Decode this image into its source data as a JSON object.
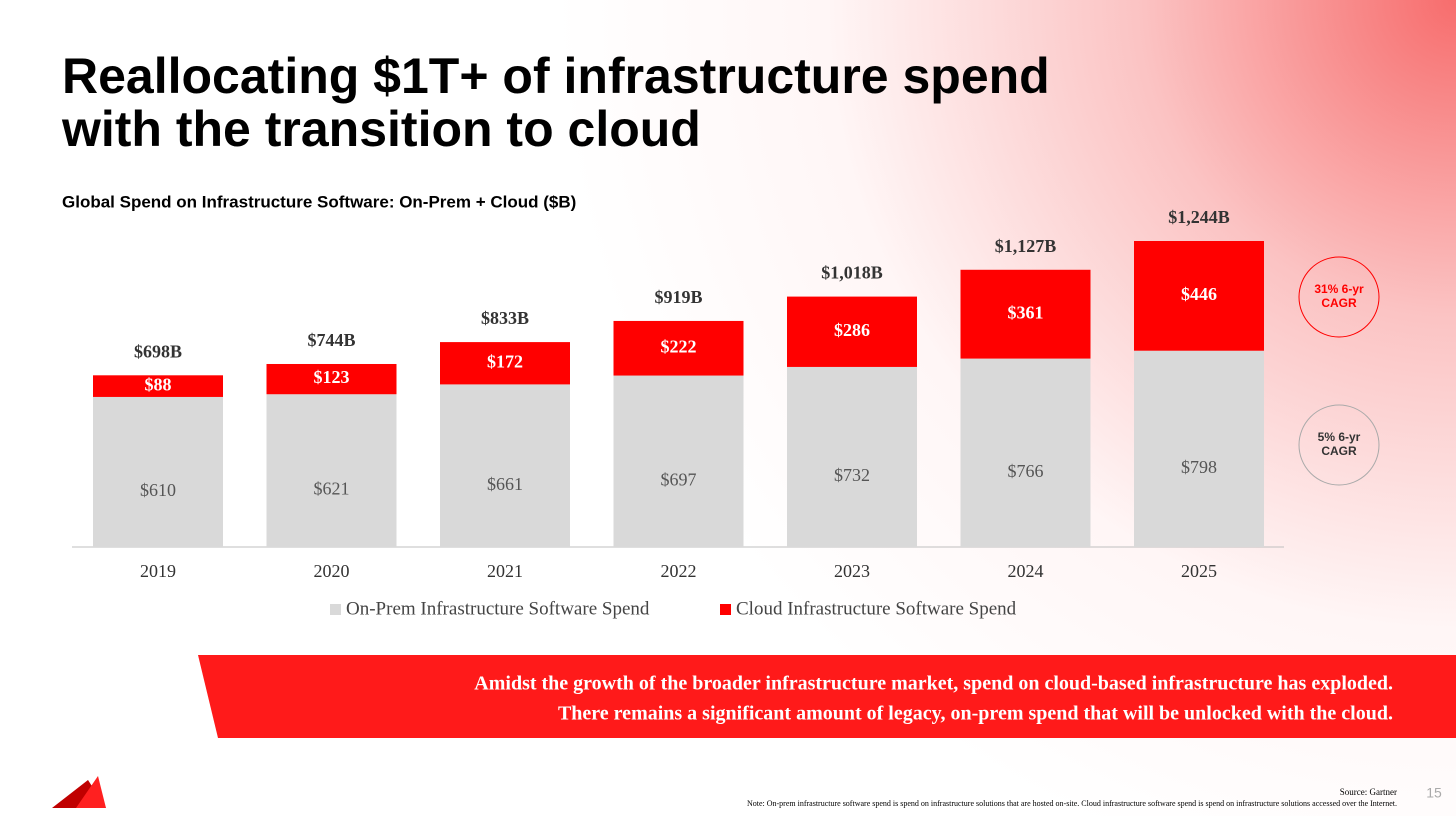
{
  "chart_data": {
    "type": "stacked_bar",
    "title": [
      "Reallocating $1T+ of infrastructure spend",
      "with the transition to cloud"
    ],
    "subtitle": "Global Spend on Infrastructure Software: On-Prem + Cloud ($B)",
    "categories": [
      "2019",
      "2020",
      "2021",
      "2022",
      "2023",
      "2024",
      "2025"
    ],
    "series": [
      {
        "name": "On-Prem Infrastructure Software Spend",
        "color": "#d9d9d9",
        "values": [
          610,
          621,
          661,
          697,
          732,
          766,
          798
        ],
        "value_labels": [
          "$610",
          "$621",
          "$661",
          "$697",
          "$732",
          "$766",
          "$798"
        ]
      },
      {
        "name": "Cloud Infrastructure Software Spend",
        "color": "#ff0000",
        "values": [
          88,
          123,
          172,
          222,
          286,
          361,
          446
        ],
        "value_labels": [
          "$88",
          "$123",
          "$172",
          "$222",
          "$286",
          "$361",
          "$446"
        ]
      }
    ],
    "totals": {
      "values": [
        698,
        744,
        833,
        919,
        1018,
        1127,
        1244
      ],
      "labels": [
        "$698B",
        "$744B",
        "$833B",
        "$919B",
        "$1,018B",
        "$1,127B",
        "$1,244B"
      ]
    },
    "annotations": [
      {
        "lines": [
          "31% 6-yr",
          "CAGR"
        ],
        "color": "#ff0000"
      },
      {
        "lines": [
          "5% 6-yr",
          "CAGR"
        ],
        "color": "#333333"
      }
    ],
    "callout": [
      "Amidst the growth of the broader infrastructure market, spend on cloud-based infrastructure has exploded.",
      "There remains a significant amount of legacy, on-prem spend that will be unlocked with the cloud."
    ],
    "source": "Source: Gartner",
    "note": "Note: On-prem infrastructure software spend is spend on infrastructure solutions that are hosted on-site. Cloud infrastructure software spend is spend on infrastructure solutions accessed over the Internet.",
    "page_number": "15"
  }
}
